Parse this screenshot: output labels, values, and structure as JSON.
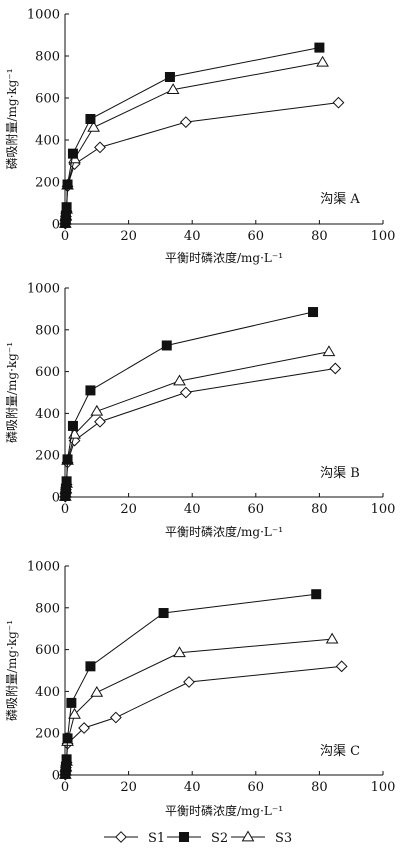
{
  "chart_data": [
    {
      "type": "line",
      "label": "沟渠 A",
      "xlabel": "平衡时磷浓度/mg·L⁻¹",
      "ylabel": "磷吸附量/mg·kg⁻¹",
      "xlim": [
        0,
        100
      ],
      "ylim": [
        0,
        1000
      ],
      "xticks": [
        0,
        20,
        40,
        60,
        80,
        100
      ],
      "yticks": [
        0,
        200,
        400,
        600,
        800,
        1000
      ],
      "series": [
        {
          "name": "S1",
          "points": [
            [
              0.1,
              2
            ],
            [
              0.2,
              15
            ],
            [
              0.3,
              35
            ],
            [
              0.5,
              60
            ],
            [
              0.8,
              180
            ],
            [
              3,
              285
            ],
            [
              11,
              365
            ],
            [
              38,
              485
            ],
            [
              86,
              578
            ]
          ]
        },
        {
          "name": "S2",
          "points": [
            [
              0.1,
              5
            ],
            [
              0.2,
              20
            ],
            [
              0.3,
              40
            ],
            [
              0.5,
              80
            ],
            [
              0.8,
              188
            ],
            [
              2.5,
              335
            ],
            [
              8,
              500
            ],
            [
              33,
              700
            ],
            [
              80,
              840
            ]
          ]
        },
        {
          "name": "S3",
          "points": [
            [
              0.1,
              3
            ],
            [
              0.2,
              18
            ],
            [
              0.3,
              38
            ],
            [
              0.5,
              70
            ],
            [
              0.8,
              185
            ],
            [
              3,
              310
            ],
            [
              9,
              460
            ],
            [
              34,
              640
            ],
            [
              81,
              770
            ]
          ]
        }
      ]
    },
    {
      "type": "line",
      "label": "沟渠 B",
      "xlabel": "平衡时磷浓度/mg·L⁻¹",
      "ylabel": "磷吸附量/mg·kg⁻¹",
      "xlim": [
        0,
        100
      ],
      "ylim": [
        0,
        1000
      ],
      "xticks": [
        0,
        20,
        40,
        60,
        80,
        100
      ],
      "yticks": [
        0,
        200,
        400,
        600,
        800,
        1000
      ],
      "series": [
        {
          "name": "S1",
          "points": [
            [
              0.1,
              2
            ],
            [
              0.2,
              15
            ],
            [
              0.3,
              35
            ],
            [
              0.5,
              60
            ],
            [
              0.8,
              165
            ],
            [
              3,
              270
            ],
            [
              11,
              360
            ],
            [
              38,
              500
            ],
            [
              85,
              615
            ]
          ]
        },
        {
          "name": "S2",
          "points": [
            [
              0.1,
              5
            ],
            [
              0.2,
              20
            ],
            [
              0.3,
              40
            ],
            [
              0.5,
              75
            ],
            [
              0.8,
              180
            ],
            [
              2.5,
              340
            ],
            [
              8,
              510
            ],
            [
              32,
              725
            ],
            [
              78,
              885
            ]
          ]
        },
        {
          "name": "S3",
          "points": [
            [
              0.1,
              3
            ],
            [
              0.2,
              18
            ],
            [
              0.3,
              38
            ],
            [
              0.5,
              65
            ],
            [
              0.8,
              175
            ],
            [
              3,
              300
            ],
            [
              10,
              410
            ],
            [
              36,
              555
            ],
            [
              83,
              695
            ]
          ]
        }
      ]
    },
    {
      "type": "line",
      "label": "沟渠 C",
      "xlabel": "平衡时磷浓度/mg·L⁻¹",
      "ylabel": "磷吸附量/mg·kg⁻¹",
      "xlim": [
        0,
        100
      ],
      "ylim": [
        0,
        1000
      ],
      "xticks": [
        0,
        20,
        40,
        60,
        80,
        100
      ],
      "yticks": [
        0,
        200,
        400,
        600,
        800,
        1000
      ],
      "series": [
        {
          "name": "S1",
          "points": [
            [
              0.1,
              2
            ],
            [
              0.2,
              15
            ],
            [
              0.3,
              35
            ],
            [
              0.5,
              60
            ],
            [
              0.8,
              150
            ],
            [
              6,
              225
            ],
            [
              16,
              275
            ],
            [
              39,
              445
            ],
            [
              87,
              520
            ]
          ]
        },
        {
          "name": "S2",
          "points": [
            [
              0.1,
              5
            ],
            [
              0.2,
              20
            ],
            [
              0.3,
              40
            ],
            [
              0.5,
              75
            ],
            [
              0.8,
              175
            ],
            [
              2,
              345
            ],
            [
              8,
              520
            ],
            [
              31,
              775
            ],
            [
              79,
              865
            ]
          ]
        },
        {
          "name": "S3",
          "points": [
            [
              0.1,
              3
            ],
            [
              0.2,
              18
            ],
            [
              0.3,
              38
            ],
            [
              0.5,
              65
            ],
            [
              0.8,
              160
            ],
            [
              3,
              290
            ],
            [
              10,
              395
            ],
            [
              36,
              585
            ],
            [
              84,
              650
            ]
          ]
        }
      ]
    }
  ],
  "legend": [
    {
      "name": "S1",
      "marker": "diamond-open"
    },
    {
      "name": "S2",
      "marker": "square-filled"
    },
    {
      "name": "S3",
      "marker": "triangle-open"
    }
  ]
}
